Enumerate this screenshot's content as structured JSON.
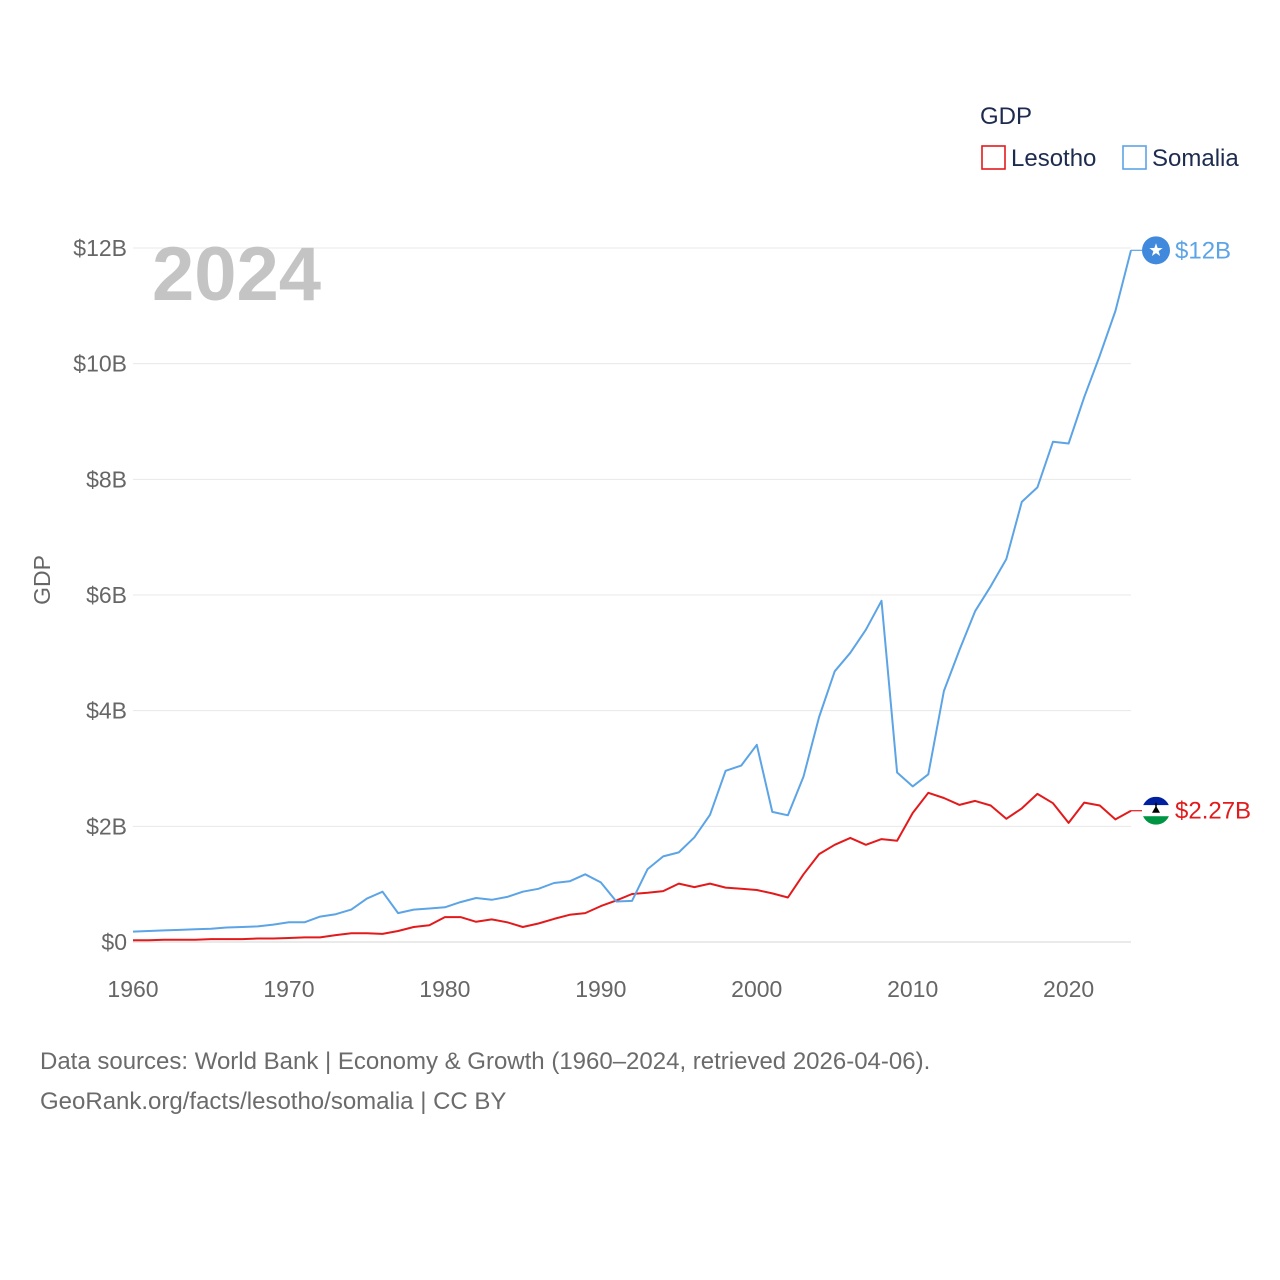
{
  "chart_data": {
    "type": "line",
    "legend_title": "GDP",
    "year_label": "2024",
    "ylabel": "GDP",
    "xlabel": "",
    "ylim": [
      0,
      12
    ],
    "xlim": [
      1960,
      2024
    ],
    "y_ticks": [
      {
        "value": 0,
        "label": "$0"
      },
      {
        "value": 2,
        "label": "$2B"
      },
      {
        "value": 4,
        "label": "$4B"
      },
      {
        "value": 6,
        "label": "$6B"
      },
      {
        "value": 8,
        "label": "$8B"
      },
      {
        "value": 10,
        "label": "$10B"
      },
      {
        "value": 12,
        "label": "$12B"
      }
    ],
    "x_ticks": [
      {
        "value": 1960,
        "label": "1960"
      },
      {
        "value": 1970,
        "label": "1970"
      },
      {
        "value": 1980,
        "label": "1980"
      },
      {
        "value": 1990,
        "label": "1990"
      },
      {
        "value": 2000,
        "label": "2000"
      },
      {
        "value": 2010,
        "label": "2010"
      },
      {
        "value": 2020,
        "label": "2020"
      }
    ],
    "units": "billions USD",
    "series": [
      {
        "name": "Lesotho",
        "color": "#e31a1c",
        "end_label": "$2.27B",
        "flag_icon": "lesotho-flag-icon",
        "x": [
          1960,
          1961,
          1962,
          1963,
          1964,
          1965,
          1966,
          1967,
          1968,
          1969,
          1970,
          1971,
          1972,
          1973,
          1974,
          1975,
          1976,
          1977,
          1978,
          1979,
          1980,
          1981,
          1982,
          1983,
          1984,
          1985,
          1986,
          1987,
          1988,
          1989,
          1990,
          1991,
          1992,
          1993,
          1994,
          1995,
          1996,
          1997,
          1998,
          1999,
          2000,
          2001,
          2002,
          2003,
          2004,
          2005,
          2006,
          2007,
          2008,
          2009,
          2010,
          2011,
          2012,
          2013,
          2014,
          2015,
          2016,
          2017,
          2018,
          2019,
          2020,
          2021,
          2022,
          2023,
          2024
        ],
        "values": [
          0.03,
          0.03,
          0.04,
          0.04,
          0.04,
          0.05,
          0.05,
          0.05,
          0.06,
          0.06,
          0.07,
          0.08,
          0.08,
          0.12,
          0.15,
          0.15,
          0.14,
          0.19,
          0.26,
          0.29,
          0.43,
          0.43,
          0.35,
          0.39,
          0.34,
          0.26,
          0.32,
          0.4,
          0.47,
          0.5,
          0.62,
          0.72,
          0.83,
          0.85,
          0.88,
          1.01,
          0.95,
          1.01,
          0.94,
          0.92,
          0.9,
          0.84,
          0.77,
          1.17,
          1.52,
          1.68,
          1.8,
          1.68,
          1.78,
          1.75,
          2.23,
          2.58,
          2.49,
          2.37,
          2.44,
          2.36,
          2.13,
          2.31,
          2.56,
          2.4,
          2.06,
          2.41,
          2.36,
          2.12,
          2.27
        ]
      },
      {
        "name": "Somalia",
        "color": "#5ca4e6",
        "end_label": "$12B",
        "flag_icon": "somalia-flag-icon",
        "x": [
          1960,
          1961,
          1962,
          1963,
          1964,
          1965,
          1966,
          1967,
          1968,
          1969,
          1970,
          1971,
          1972,
          1973,
          1974,
          1975,
          1976,
          1977,
          1978,
          1979,
          1980,
          1981,
          1982,
          1983,
          1984,
          1985,
          1986,
          1987,
          1988,
          1989,
          1990,
          1991,
          1992,
          1993,
          1994,
          1995,
          1996,
          1997,
          1998,
          1999,
          2000,
          2001,
          2002,
          2003,
          2004,
          2005,
          2006,
          2007,
          2008,
          2009,
          2010,
          2011,
          2012,
          2013,
          2014,
          2015,
          2016,
          2017,
          2018,
          2019,
          2020,
          2021,
          2022,
          2023,
          2024
        ],
        "values": [
          0.18,
          0.19,
          0.2,
          0.21,
          0.22,
          0.23,
          0.25,
          0.26,
          0.27,
          0.3,
          0.34,
          0.34,
          0.44,
          0.48,
          0.56,
          0.75,
          0.87,
          0.5,
          0.56,
          0.58,
          0.6,
          0.69,
          0.76,
          0.73,
          0.78,
          0.87,
          0.92,
          1.02,
          1.05,
          1.17,
          1.03,
          0.7,
          0.71,
          1.26,
          1.48,
          1.55,
          1.81,
          2.2,
          2.96,
          3.05,
          3.41,
          2.25,
          2.19,
          2.86,
          3.89,
          4.68,
          5.0,
          5.4,
          5.9,
          2.93,
          2.69,
          2.9,
          4.34,
          5.05,
          5.72,
          6.15,
          6.62,
          7.61,
          7.86,
          8.65,
          8.62,
          9.42,
          10.14,
          10.91,
          11.96
        ]
      }
    ]
  },
  "footer": {
    "source_line1": "Data sources: World Bank | Economy & Growth (1960–2024, retrieved 2026-04-06).",
    "source_line2": "GeoRank.org/facts/lesotho/somalia | CC BY"
  }
}
